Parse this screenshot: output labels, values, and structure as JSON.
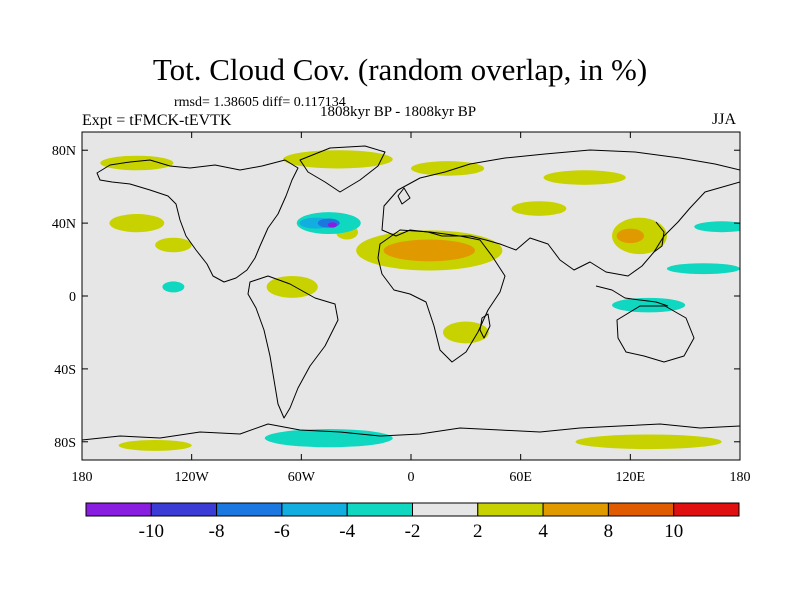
{
  "title": "Tot. Cloud Cov. (random overlap, in %)",
  "stats": "rmsd= 1.38605  diff= 0.117134",
  "experiment": "Expt = tFMCK-tEVTK",
  "period": "1808kyr BP - 1808kyr BP",
  "season": "JJA",
  "axes": {
    "x_ticks": [
      {
        "value": -180,
        "label": "180"
      },
      {
        "value": -120,
        "label": "120W"
      },
      {
        "value": -60,
        "label": "60W"
      },
      {
        "value": 0,
        "label": "0"
      },
      {
        "value": 60,
        "label": "60E"
      },
      {
        "value": 120,
        "label": "120E"
      },
      {
        "value": 180,
        "label": "180"
      }
    ],
    "y_ticks": [
      {
        "value": 80,
        "label": "80N"
      },
      {
        "value": 40,
        "label": "40N"
      },
      {
        "value": 0,
        "label": "0"
      },
      {
        "value": -40,
        "label": "40S"
      },
      {
        "value": -80,
        "label": "80S"
      }
    ],
    "lon_range": [
      -180,
      180
    ],
    "lat_range": [
      -90,
      90
    ]
  },
  "colorbar": {
    "colors": [
      "#8a1ee0",
      "#3b3bd6",
      "#1a78e0",
      "#12aee0",
      "#10d8c0",
      "#e6e6e6",
      "#c8d200",
      "#e09a00",
      "#e05a00",
      "#e01010"
    ],
    "labels": [
      "-10",
      "-8",
      "-6",
      "-4",
      "-2",
      "2",
      "4",
      "8",
      "10"
    ]
  },
  "anomaly_regions": [
    {
      "level": 2,
      "lat": 73,
      "lon": -150,
      "w": 40,
      "h": 8
    },
    {
      "level": 2,
      "lat": 75,
      "lon": -40,
      "w": 60,
      "h": 10
    },
    {
      "level": 2,
      "lat": 70,
      "lon": 20,
      "w": 40,
      "h": 8
    },
    {
      "level": 2,
      "lat": 65,
      "lon": 95,
      "w": 45,
      "h": 8
    },
    {
      "level": 2,
      "lat": 40,
      "lon": -150,
      "w": 30,
      "h": 10
    },
    {
      "level": 2,
      "lat": 28,
      "lon": -130,
      "w": 20,
      "h": 8
    },
    {
      "level": 2,
      "lat": 35,
      "lon": -35,
      "w": 12,
      "h": 8
    },
    {
      "level": 2,
      "lat": 25,
      "lon": 10,
      "w": 80,
      "h": 22
    },
    {
      "level": 2,
      "lat": 48,
      "lon": 70,
      "w": 30,
      "h": 8
    },
    {
      "level": 2,
      "lat": 33,
      "lon": 125,
      "w": 30,
      "h": 20
    },
    {
      "level": 2,
      "lat": 5,
      "lon": -65,
      "w": 28,
      "h": 12
    },
    {
      "level": 2,
      "lat": -20,
      "lon": 30,
      "w": 25,
      "h": 12
    },
    {
      "level": 2,
      "lat": -82,
      "lon": -140,
      "w": 40,
      "h": 6
    },
    {
      "level": 2,
      "lat": -80,
      "lon": 130,
      "w": 80,
      "h": 8
    },
    {
      "level": 4,
      "lat": 25,
      "lon": 10,
      "w": 50,
      "h": 12
    },
    {
      "level": 4,
      "lat": 33,
      "lon": 120,
      "w": 15,
      "h": 8
    },
    {
      "level": -2,
      "lat": 40,
      "lon": -45,
      "w": 35,
      "h": 12
    },
    {
      "level": -2,
      "lat": 38,
      "lon": 170,
      "w": 30,
      "h": 6
    },
    {
      "level": -2,
      "lat": 15,
      "lon": 160,
      "w": 40,
      "h": 6
    },
    {
      "level": -2,
      "lat": -5,
      "lon": 130,
      "w": 40,
      "h": 8
    },
    {
      "level": -2,
      "lat": -78,
      "lon": -45,
      "w": 70,
      "h": 10
    },
    {
      "level": -2,
      "lat": 5,
      "lon": -130,
      "w": 12,
      "h": 6
    },
    {
      "level": -4,
      "lat": 40,
      "lon": -52,
      "w": 18,
      "h": 6
    },
    {
      "level": -6,
      "lat": 40,
      "lon": -45,
      "w": 12,
      "h": 5
    },
    {
      "level": -10,
      "lat": 39,
      "lon": -43,
      "w": 5,
      "h": 3
    }
  ]
}
